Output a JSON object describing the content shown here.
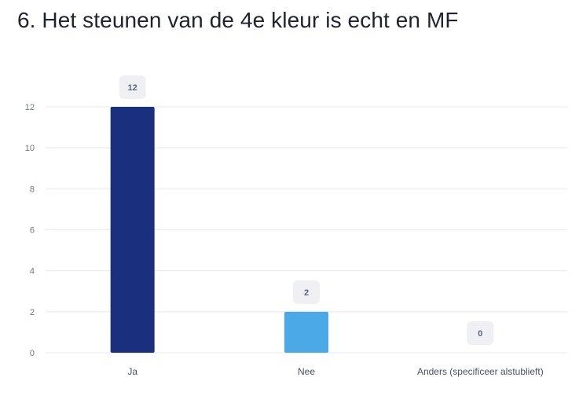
{
  "title": "6. Het steunen van de 4e kleur is echt en MF",
  "chart_data": {
    "type": "bar",
    "title": "6. Het steunen van de 4e kleur is echt en MF",
    "xlabel": "",
    "ylabel": "",
    "categories": [
      "Ja",
      "Nee",
      "Anders (specificeer alstublieft)"
    ],
    "values": [
      12,
      2,
      0
    ],
    "colors": [
      "#1a2f7d",
      "#4aa9e6",
      "#6ec6f0"
    ],
    "ylim": [
      0,
      12
    ],
    "yticks": [
      0,
      2,
      4,
      6,
      8,
      10,
      12
    ],
    "grid": true,
    "data_labels": true,
    "legend": "none"
  },
  "colors": {
    "grid": "#e6e8ec",
    "badge_bg": "#eef0f3"
  }
}
